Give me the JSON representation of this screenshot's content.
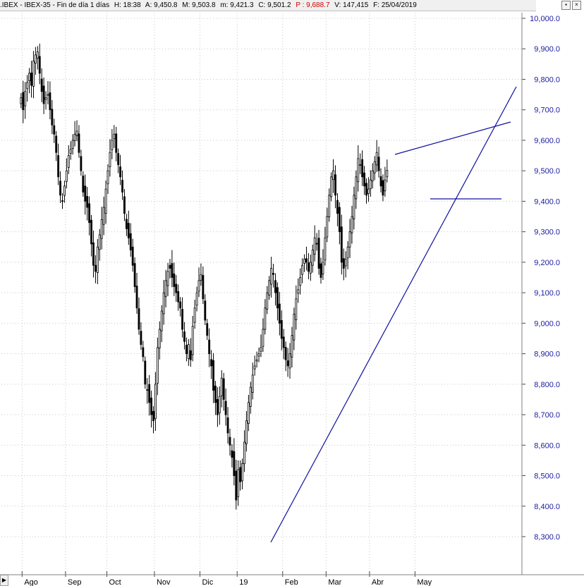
{
  "header": {
    "symbol": ".IBEX - IBEX-35 - Fin de día 1 días",
    "high": "H: 18:38",
    "ask": "A: 9,450.8",
    "max": "M: 9,503.8",
    "min": "m: 9,421.3",
    "close": "C: 9,501.2",
    "prev": "P : 9,688.7",
    "volume": "V: 147,415",
    "date": "F: 25/04/2019"
  },
  "controls": {
    "menu_icon": "▪",
    "close_icon": "×"
  },
  "colors": {
    "candle": "#000000",
    "trendline": "#1010a0",
    "axis_text": "#1a1aa0",
    "grid": "#c8c8c8"
  },
  "chart_data": {
    "type": "candlestick",
    "y_ticks": [
      "8,300.0",
      "8,400.0",
      "8,500.0",
      "8,600.0",
      "8,700.0",
      "8,800.0",
      "8,900.0",
      "9,000.0",
      "9,100.0",
      "9,200.0",
      "9,300.0",
      "9,400.0",
      "9,500.0",
      "9,600.0",
      "9,700.0",
      "9,800.0",
      "9,900.0",
      "10,000.0"
    ],
    "ylim": [
      8250,
      10000
    ],
    "x_labels": [
      "Ago",
      "Sep",
      "Oct",
      "Nov",
      "Dic",
      "19",
      "Feb",
      "Mar",
      "Abr",
      "May"
    ],
    "x_label_days": [
      0,
      21,
      41,
      64,
      86,
      104,
      126,
      147,
      168,
      190
    ],
    "x_range_days": [
      -10,
      240
    ],
    "closes": [
      9740,
      9700,
      9760,
      9790,
      9820,
      9780,
      9860,
      9880,
      9890,
      9820,
      9760,
      9720,
      9740,
      9750,
      9700,
      9650,
      9620,
      9560,
      9480,
      9420,
      9400,
      9450,
      9500,
      9550,
      9570,
      9600,
      9620,
      9630,
      9560,
      9500,
      9430,
      9400,
      9380,
      9330,
      9260,
      9190,
      9170,
      9250,
      9290,
      9340,
      9380,
      9440,
      9500,
      9560,
      9600,
      9620,
      9560,
      9520,
      9480,
      9430,
      9360,
      9310,
      9280,
      9240,
      9190,
      9120,
      9050,
      8980,
      8930,
      8890,
      8800,
      8780,
      8740,
      8700,
      8680,
      8800,
      8920,
      8980,
      9040,
      9100,
      9140,
      9170,
      9180,
      9150,
      9120,
      9100,
      9070,
      9050,
      8980,
      8940,
      8900,
      8930,
      8880,
      8990,
      9050,
      9100,
      9140,
      9160,
      9080,
      9010,
      8960,
      8900,
      8860,
      8780,
      8740,
      8700,
      8760,
      8820,
      8750,
      8700,
      8640,
      8600,
      8560,
      8500,
      8420,
      8520,
      8480,
      8540,
      8610,
      8680,
      8740,
      8790,
      8830,
      8860,
      8880,
      8900,
      8920,
      8980,
      9050,
      9100,
      9140,
      9180,
      9160,
      9100,
      9050,
      9000,
      8950,
      8920,
      8880,
      8860,
      8900,
      8960,
      9030,
      9080,
      9110,
      9150,
      9190,
      9210,
      9200,
      9170,
      9200,
      9240,
      9280,
      9260,
      9180,
      9150,
      9200,
      9280,
      9350,
      9420,
      9480,
      9500,
      9420,
      9360,
      9300,
      9200,
      9180,
      9210,
      9250,
      9300,
      9350,
      9420,
      9480,
      9540,
      9520,
      9480,
      9450,
      9420,
      9440,
      9470,
      9500,
      9530,
      9560,
      9500,
      9450,
      9420,
      9470,
      9501
    ]
  }
}
